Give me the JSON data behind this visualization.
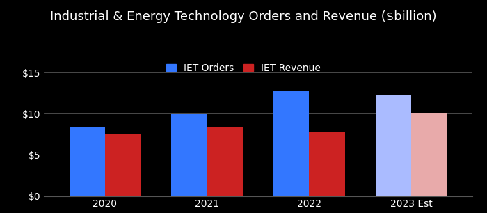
{
  "title": "Industrial & Energy Technology Orders and Revenue ($billion)",
  "categories": [
    "2020",
    "2021",
    "2022",
    "2023 Est"
  ],
  "iet_orders": [
    8.4,
    9.9,
    12.7,
    12.2
  ],
  "iet_revenue": [
    7.6,
    8.4,
    7.8,
    10.0
  ],
  "orders_colors": [
    "#3377ff",
    "#3377ff",
    "#3377ff",
    "#aabbff"
  ],
  "revenue_colors": [
    "#cc2222",
    "#cc2222",
    "#cc2222",
    "#e8aaaa"
  ],
  "background_color": "#000000",
  "text_color": "#ffffff",
  "grid_color": "#555555",
  "ylim": [
    0,
    15
  ],
  "yticks": [
    0,
    5,
    10,
    15
  ],
  "bar_width": 0.35,
  "legend_labels": [
    "IET Orders",
    "IET Revenue"
  ],
  "legend_orders_color": "#3377ff",
  "legend_revenue_color": "#cc2222",
  "title_fontsize": 13,
  "tick_fontsize": 10,
  "legend_fontsize": 10
}
